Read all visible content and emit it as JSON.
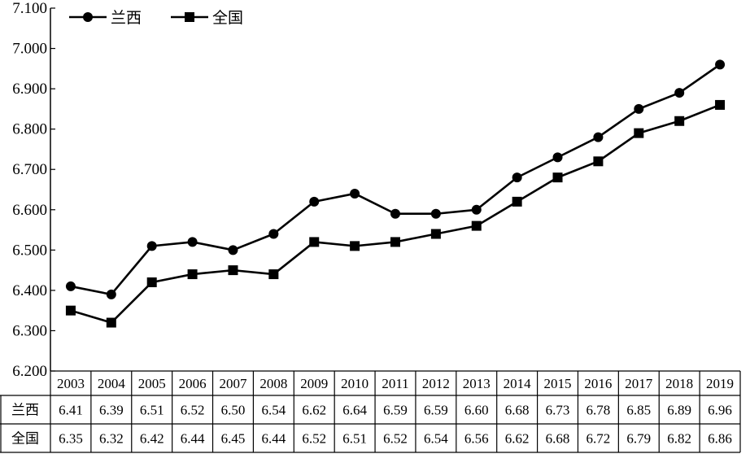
{
  "chart_data": {
    "type": "line",
    "categories": [
      "2003",
      "2004",
      "2005",
      "2006",
      "2007",
      "2008",
      "2009",
      "2010",
      "2011",
      "2012",
      "2013",
      "2014",
      "2015",
      "2016",
      "2017",
      "2018",
      "2019"
    ],
    "series": [
      {
        "name": "兰西",
        "marker": "circle",
        "values": [
          6.41,
          6.39,
          6.51,
          6.52,
          6.5,
          6.54,
          6.62,
          6.64,
          6.59,
          6.59,
          6.6,
          6.68,
          6.73,
          6.78,
          6.85,
          6.89,
          6.96
        ],
        "labels": [
          "6.41",
          "6.39",
          "6.51",
          "6.52",
          "6.50",
          "6.54",
          "6.62",
          "6.64",
          "6.59",
          "6.59",
          "6.60",
          "6.68",
          "6.73",
          "6.78",
          "6.85",
          "6.89",
          "6.96"
        ]
      },
      {
        "name": "全国",
        "marker": "square",
        "values": [
          6.35,
          6.32,
          6.42,
          6.44,
          6.45,
          6.44,
          6.52,
          6.51,
          6.52,
          6.54,
          6.56,
          6.62,
          6.68,
          6.72,
          6.79,
          6.82,
          6.86
        ],
        "labels": [
          "6.35",
          "6.32",
          "6.42",
          "6.44",
          "6.45",
          "6.44",
          "6.52",
          "6.51",
          "6.52",
          "6.54",
          "6.56",
          "6.62",
          "6.68",
          "6.72",
          "6.79",
          "6.82",
          "6.86"
        ]
      }
    ],
    "ylim": [
      6.2,
      7.1
    ],
    "yticks": [
      "6.200",
      "6.300",
      "6.400",
      "6.500",
      "6.600",
      "6.700",
      "6.800",
      "6.900",
      "7.000",
      "7.100"
    ],
    "grid": false,
    "legend": "top-left",
    "table": true
  }
}
